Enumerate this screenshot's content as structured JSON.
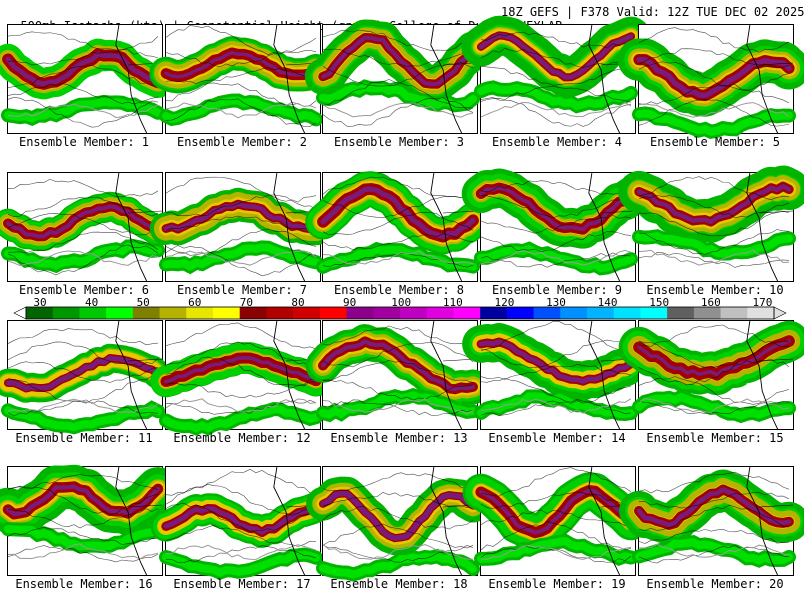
{
  "header": {
    "title_left": "500mb Isotachs (kts) | Geopotential Height (gpm) | College of DuPage NEXLAB",
    "title_right": "18Z GEFS | F378 Valid: 12Z TUE DEC 02 2025"
  },
  "panels": [
    {
      "label": "Ensemble Member: 1"
    },
    {
      "label": "Ensemble Member: 2"
    },
    {
      "label": "Ensemble Member: 3"
    },
    {
      "label": "Ensemble Member: 4"
    },
    {
      "label": "Ensemble Member: 5"
    },
    {
      "label": "Ensemble Member: 6"
    },
    {
      "label": "Ensemble Member: 7"
    },
    {
      "label": "Ensemble Member: 8"
    },
    {
      "label": "Ensemble Member: 9"
    },
    {
      "label": "Ensemble Member: 10"
    },
    {
      "label": "Ensemble Member: 11"
    },
    {
      "label": "Ensemble Member: 12"
    },
    {
      "label": "Ensemble Member: 13"
    },
    {
      "label": "Ensemble Member: 14"
    },
    {
      "label": "Ensemble Member: 15"
    },
    {
      "label": "Ensemble Member: 16"
    },
    {
      "label": "Ensemble Member: 17"
    },
    {
      "label": "Ensemble Member: 18"
    },
    {
      "label": "Ensemble Member: 19"
    },
    {
      "label": "Ensemble Member: 20"
    }
  ],
  "colorbar": {
    "labels": [
      "30",
      "40",
      "50",
      "60",
      "70",
      "80",
      "90",
      "100",
      "110",
      "120",
      "130",
      "140",
      "150",
      "160",
      "170"
    ],
    "colors": [
      "#006400",
      "#009600",
      "#00c800",
      "#00ff00",
      "#7f7f00",
      "#b4b400",
      "#e6e600",
      "#ffff00",
      "#8b0000",
      "#b00000",
      "#d00000",
      "#ff0000",
      "#8b008b",
      "#a000a0",
      "#c000c0",
      "#e000e0",
      "#ff00ff",
      "#0000a0",
      "#0000ff",
      "#0050ff",
      "#0090ff",
      "#00b4ff",
      "#00e0ff",
      "#00ffff",
      "#606060",
      "#909090",
      "#c0c0c0",
      "#e0e0e0"
    ]
  }
}
